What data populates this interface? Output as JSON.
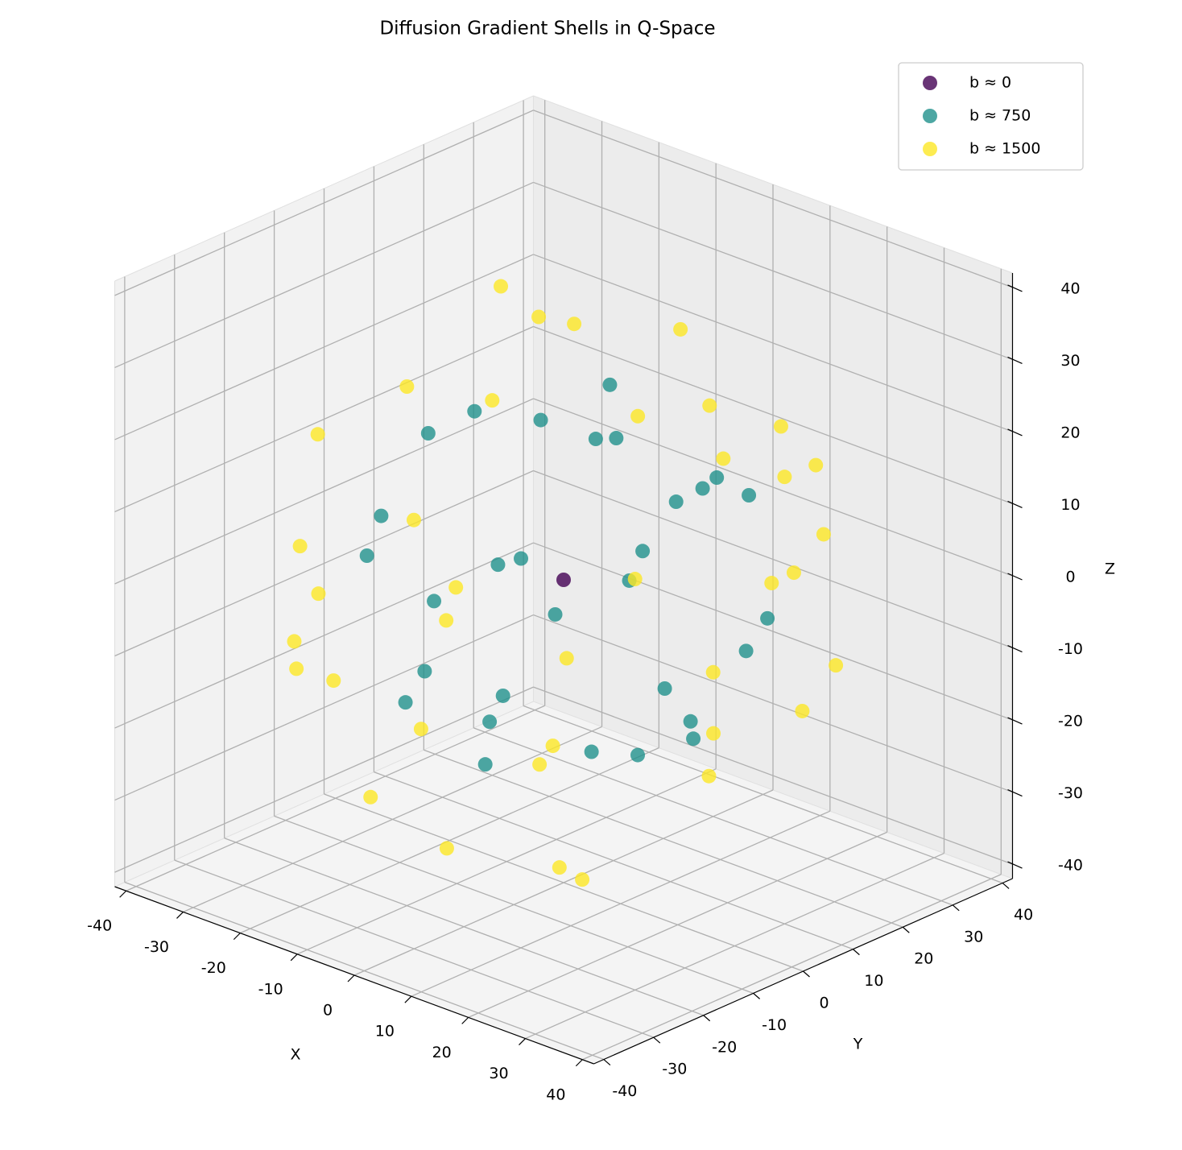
{
  "chart_data": {
    "type": "scatter3d",
    "title": "Diffusion Gradient Shells in Q-Space",
    "xlabel": "X",
    "ylabel": "Y",
    "zlabel": "Z",
    "xlim": [
      -42,
      42
    ],
    "ylim": [
      -42,
      42
    ],
    "zlim": [
      -42,
      42
    ],
    "xticks": [
      -40,
      -30,
      -20,
      -10,
      0,
      10,
      20,
      30,
      40
    ],
    "yticks": [
      -40,
      -30,
      -20,
      -10,
      0,
      10,
      20,
      30,
      40
    ],
    "zticks": [
      -40,
      -30,
      -20,
      -10,
      0,
      10,
      20,
      30,
      40
    ],
    "grid": true,
    "legend": "upper right",
    "series": [
      {
        "name": "b ≈ 0",
        "color": "#440154",
        "x": [
          0
        ],
        "y": [
          0
        ],
        "z": [
          0
        ]
      },
      {
        "name": "b ≈ 750",
        "color": "#21918c",
        "x": [
          20,
          -5,
          -15,
          10,
          22,
          -20,
          5,
          -25,
          15,
          0,
          -10,
          25,
          -22,
          8,
          18,
          -12,
          2,
          -20,
          14,
          -5,
          24,
          -8,
          10,
          -18,
          20,
          -24,
          6,
          -3,
          16,
          -15
        ],
        "y": [
          5,
          15,
          -10,
          -20,
          -12,
          5,
          25,
          -8,
          20,
          -26,
          22,
          8,
          12,
          -24,
          -15,
          -18,
          18,
          -5,
          10,
          -10,
          -2,
          25,
          -5,
          16,
          18,
          -12,
          8,
          26,
          -20,
          5
        ],
        "z": [
          17,
          21,
          19,
          12,
          10,
          16,
          8,
          4,
          10,
          5,
          10,
          -5,
          -8,
          -10,
          -14,
          -15,
          -20,
          -17,
          -21,
          -24,
          -12,
          -6,
          24,
          12,
          -5,
          0,
          -25,
          2,
          6,
          -22
        ]
      },
      {
        "name": "b ≈ 1500",
        "color": "#fde725",
        "x": [
          30,
          -20,
          -30,
          10,
          35,
          -35,
          5,
          -10,
          20,
          -25,
          15,
          -15,
          0,
          25,
          -5,
          32,
          -30,
          12,
          -20,
          28,
          -8,
          18,
          -36,
          8,
          -18,
          22,
          30,
          -25,
          0,
          36,
          -12,
          10,
          -28,
          15,
          -3,
          25,
          -32,
          20
        ],
        "y": [
          10,
          25,
          -15,
          -35,
          -10,
          10,
          36,
          -20,
          25,
          -25,
          -18,
          15,
          -5,
          -28,
          35,
          18,
          20,
          -10,
          -30,
          0,
          -37,
          30,
          -8,
          20,
          8,
          -30,
          -20,
          0,
          30,
          5,
          -25,
          12,
          -22,
          35,
          -20,
          15,
          15,
          -8
        ],
        "z": [
          20,
          22,
          16,
          8,
          -8,
          -5,
          -10,
          30,
          -20,
          -12,
          -30,
          -32,
          38,
          5,
          12,
          -8,
          10,
          -35,
          8,
          25,
          -5,
          12,
          -10,
          -31,
          33,
          -10,
          15,
          -28,
          -22,
          10,
          -26,
          34,
          -10,
          0,
          -32,
          24,
          -15,
          31
        ]
      }
    ]
  }
}
